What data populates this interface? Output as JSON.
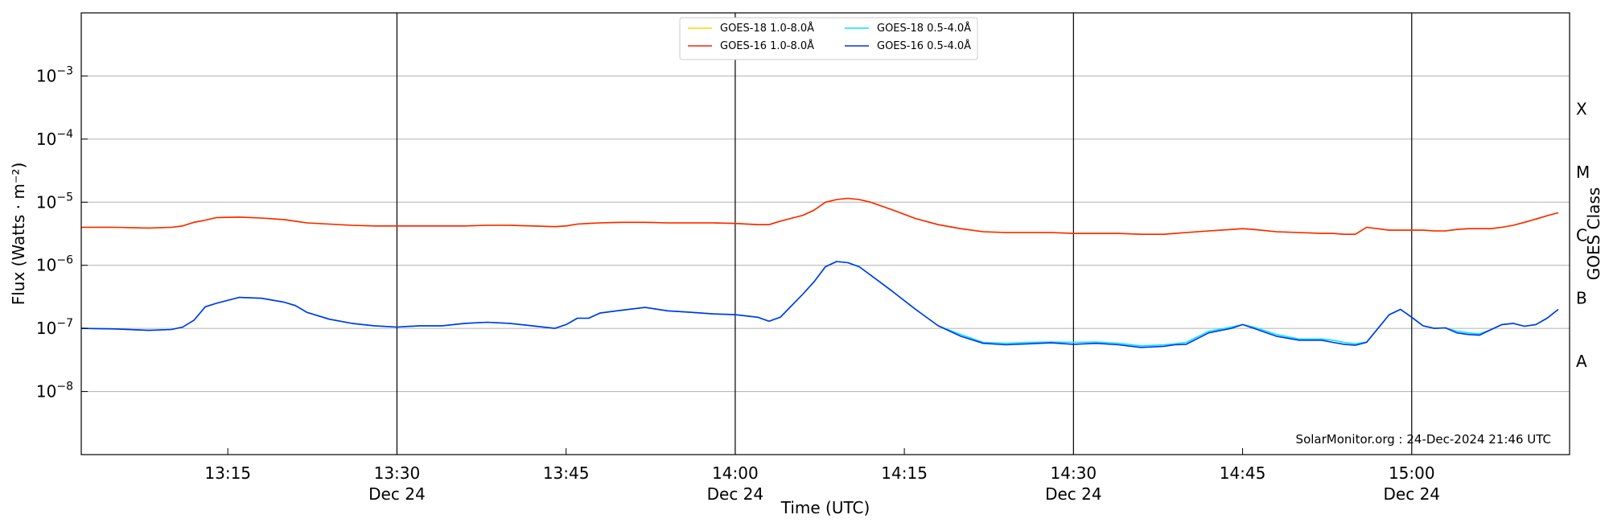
{
  "chart_data": {
    "type": "line",
    "xlabel": "Time (UTC)",
    "ylabel": "Flux (Watts · m⁻²)",
    "y2label": "GOES Class",
    "y_scale": "log",
    "ylim": [
      1e-09,
      0.01
    ],
    "xlim": [
      "2024-12-24 13:02",
      "2024-12-24 15:14"
    ],
    "x_ticks_minor": [
      "13:15",
      "13:45",
      "14:15",
      "14:45"
    ],
    "x_ticks_major": [
      {
        "time": "13:30",
        "date": "Dec 24"
      },
      {
        "time": "14:00",
        "date": "Dec 24"
      },
      {
        "time": "14:30",
        "date": "Dec 24"
      },
      {
        "time": "15:00",
        "date": "Dec 24"
      }
    ],
    "y_ticks": [
      {
        "value": 0.001,
        "base": "10",
        "exp": "−3"
      },
      {
        "value": 0.0001,
        "base": "10",
        "exp": "−4"
      },
      {
        "value": 1e-05,
        "base": "10",
        "exp": "−5"
      },
      {
        "value": 1e-06,
        "base": "10",
        "exp": "−6"
      },
      {
        "value": 1e-07,
        "base": "10",
        "exp": "−7"
      },
      {
        "value": 1e-08,
        "base": "10",
        "exp": "−8"
      }
    ],
    "goes_classes": [
      {
        "label": "X",
        "value": 0.0003
      },
      {
        "label": "M",
        "value": 3e-05
      },
      {
        "label": "C",
        "value": 3e-06
      },
      {
        "label": "B",
        "value": 3e-07
      },
      {
        "label": "A",
        "value": 3e-08
      }
    ],
    "grid": true,
    "legend_position": "top-center",
    "annotation": "SolarMonitor.org : 24-Dec-2024 21:46 UTC",
    "x": [
      "13:02",
      "13:05",
      "13:08",
      "13:10",
      "13:11",
      "13:12",
      "13:13",
      "13:14",
      "13:16",
      "13:18",
      "13:20",
      "13:21",
      "13:22",
      "13:24",
      "13:26",
      "13:28",
      "13:30",
      "13:32",
      "13:34",
      "13:36",
      "13:38",
      "13:40",
      "13:42",
      "13:44",
      "13:45",
      "13:46",
      "13:47",
      "13:48",
      "13:50",
      "13:52",
      "13:54",
      "13:56",
      "13:58",
      "14:00",
      "14:02",
      "14:03",
      "14:04",
      "14:06",
      "14:07",
      "14:08",
      "14:09",
      "14:10",
      "14:11",
      "14:12",
      "14:14",
      "14:16",
      "14:18",
      "14:20",
      "14:22",
      "14:24",
      "14:26",
      "14:28",
      "14:30",
      "14:32",
      "14:34",
      "14:36",
      "14:38",
      "14:39",
      "14:40",
      "14:42",
      "14:44",
      "14:45",
      "14:46",
      "14:48",
      "14:50",
      "14:52",
      "14:53",
      "14:54",
      "14:55",
      "14:56",
      "14:58",
      "14:59",
      "15:00",
      "15:01",
      "15:02",
      "15:03",
      "15:04",
      "15:05",
      "15:06",
      "15:07",
      "15:08",
      "15:09",
      "15:10",
      "15:11",
      "15:12",
      "15:13"
    ],
    "series": [
      {
        "name": "GOES-18 1.0-8.0Å",
        "color": "#ffd700",
        "values": [
          4e-06,
          4e-06,
          3.9e-06,
          4e-06,
          4.2e-06,
          4.8e-06,
          5.2e-06,
          5.7e-06,
          5.8e-06,
          5.6e-06,
          5.3e-06,
          5e-06,
          4.7e-06,
          4.5e-06,
          4.3e-06,
          4.2e-06,
          4.2e-06,
          4.2e-06,
          4.2e-06,
          4.2e-06,
          4.3e-06,
          4.3e-06,
          4.2e-06,
          4.1e-06,
          4.2e-06,
          4.5e-06,
          4.6e-06,
          4.7e-06,
          4.8e-06,
          4.8e-06,
          4.7e-06,
          4.7e-06,
          4.7e-06,
          4.6e-06,
          4.4e-06,
          4.4e-06,
          5e-06,
          6.2e-06,
          7.5e-06,
          1e-05,
          1.1e-05,
          1.15e-05,
          1.1e-05,
          1e-05,
          7.5e-06,
          5.5e-06,
          4.4e-06,
          3.8e-06,
          3.4e-06,
          3.3e-06,
          3.3e-06,
          3.3e-06,
          3.2e-06,
          3.2e-06,
          3.2e-06,
          3.1e-06,
          3.1e-06,
          3.2e-06,
          3.3e-06,
          3.5e-06,
          3.7e-06,
          3.8e-06,
          3.7e-06,
          3.4e-06,
          3.3e-06,
          3.2e-06,
          3.2e-06,
          3.1e-06,
          3.1e-06,
          4e-06,
          3.6e-06,
          3.6e-06,
          3.6e-06,
          3.6e-06,
          3.5e-06,
          3.5e-06,
          3.7e-06,
          3.8e-06,
          3.8e-06,
          3.8e-06,
          4e-06,
          4.3e-06,
          4.8e-06,
          5.4e-06,
          6.1e-06,
          6.8e-06
        ]
      },
      {
        "name": "GOES-16 1.0-8.0Å",
        "color": "#ff2200",
        "values": [
          4e-06,
          4e-06,
          3.9e-06,
          4e-06,
          4.2e-06,
          4.8e-06,
          5.2e-06,
          5.7e-06,
          5.8e-06,
          5.6e-06,
          5.3e-06,
          5e-06,
          4.7e-06,
          4.5e-06,
          4.3e-06,
          4.2e-06,
          4.2e-06,
          4.2e-06,
          4.2e-06,
          4.2e-06,
          4.3e-06,
          4.3e-06,
          4.2e-06,
          4.1e-06,
          4.2e-06,
          4.5e-06,
          4.6e-06,
          4.7e-06,
          4.8e-06,
          4.8e-06,
          4.7e-06,
          4.7e-06,
          4.7e-06,
          4.6e-06,
          4.4e-06,
          4.4e-06,
          5e-06,
          6.2e-06,
          7.5e-06,
          1e-05,
          1.1e-05,
          1.15e-05,
          1.1e-05,
          1e-05,
          7.5e-06,
          5.5e-06,
          4.4e-06,
          3.8e-06,
          3.4e-06,
          3.3e-06,
          3.3e-06,
          3.3e-06,
          3.2e-06,
          3.2e-06,
          3.2e-06,
          3.1e-06,
          3.1e-06,
          3.2e-06,
          3.3e-06,
          3.5e-06,
          3.7e-06,
          3.8e-06,
          3.7e-06,
          3.4e-06,
          3.3e-06,
          3.2e-06,
          3.2e-06,
          3.1e-06,
          3.1e-06,
          4e-06,
          3.6e-06,
          3.6e-06,
          3.6e-06,
          3.6e-06,
          3.5e-06,
          3.5e-06,
          3.7e-06,
          3.8e-06,
          3.8e-06,
          3.8e-06,
          4e-06,
          4.3e-06,
          4.8e-06,
          5.4e-06,
          6.1e-06,
          6.8e-06
        ]
      },
      {
        "name": "GOES-18 0.5-4.0Å",
        "color": "#00e5ff",
        "values": [
          1e-07,
          9.8e-08,
          9.3e-08,
          9.6e-08,
          1.05e-07,
          1.35e-07,
          2.2e-07,
          2.5e-07,
          3.1e-07,
          3e-07,
          2.6e-07,
          2.3e-07,
          1.8e-07,
          1.4e-07,
          1.2e-07,
          1.1e-07,
          1.05e-07,
          1.1e-07,
          1.1e-07,
          1.2e-07,
          1.25e-07,
          1.2e-07,
          1.1e-07,
          1e-07,
          1.15e-07,
          1.45e-07,
          1.45e-07,
          1.75e-07,
          1.95e-07,
          2.15e-07,
          1.9e-07,
          1.8e-07,
          1.7e-07,
          1.65e-07,
          1.5e-07,
          1.3e-07,
          1.5e-07,
          3.5e-07,
          5.5e-07,
          9.5e-07,
          1.15e-06,
          1.1e-06,
          9.5e-07,
          7e-07,
          3.8e-07,
          2e-07,
          1.1e-07,
          8e-08,
          6e-08,
          5.8e-08,
          6e-08,
          6.1e-08,
          6e-08,
          6.1e-08,
          5.8e-08,
          5.3e-08,
          5.5e-08,
          5.7e-08,
          6e-08,
          9e-08,
          1.05e-07,
          1.15e-07,
          1.05e-07,
          8e-08,
          6.8e-08,
          6.8e-08,
          6.5e-08,
          6e-08,
          5.7e-08,
          6.1e-08,
          1.65e-07,
          2e-07,
          1.5e-07,
          1.1e-07,
          1e-07,
          1.02e-07,
          9e-08,
          8.5e-08,
          8.2e-08,
          9.5e-08,
          1.15e-07,
          1.2e-07,
          1.08e-07,
          1.15e-07,
          1.45e-07,
          2e-07
        ]
      },
      {
        "name": "GOES-16 0.5-4.0Å",
        "color": "#0033ee",
        "values": [
          1e-07,
          9.8e-08,
          9.3e-08,
          9.6e-08,
          1.05e-07,
          1.35e-07,
          2.2e-07,
          2.5e-07,
          3.1e-07,
          3e-07,
          2.6e-07,
          2.3e-07,
          1.8e-07,
          1.4e-07,
          1.2e-07,
          1.1e-07,
          1.05e-07,
          1.1e-07,
          1.1e-07,
          1.2e-07,
          1.25e-07,
          1.2e-07,
          1.1e-07,
          1e-07,
          1.15e-07,
          1.45e-07,
          1.45e-07,
          1.75e-07,
          1.95e-07,
          2.15e-07,
          1.9e-07,
          1.8e-07,
          1.7e-07,
          1.65e-07,
          1.5e-07,
          1.3e-07,
          1.5e-07,
          3.5e-07,
          5.5e-07,
          9.5e-07,
          1.15e-06,
          1.1e-06,
          9.5e-07,
          7e-07,
          3.8e-07,
          2e-07,
          1.1e-07,
          7.5e-08,
          5.8e-08,
          5.5e-08,
          5.7e-08,
          5.9e-08,
          5.6e-08,
          5.8e-08,
          5.5e-08,
          5e-08,
          5.2e-08,
          5.5e-08,
          5.6e-08,
          8.5e-08,
          1e-07,
          1.15e-07,
          1e-07,
          7.5e-08,
          6.5e-08,
          6.5e-08,
          6e-08,
          5.6e-08,
          5.4e-08,
          6e-08,
          1.65e-07,
          2e-07,
          1.5e-07,
          1.1e-07,
          1e-07,
          1.02e-07,
          8.5e-08,
          8e-08,
          7.8e-08,
          9.5e-08,
          1.15e-07,
          1.2e-07,
          1.08e-07,
          1.15e-07,
          1.45e-07,
          2e-07
        ]
      }
    ]
  }
}
